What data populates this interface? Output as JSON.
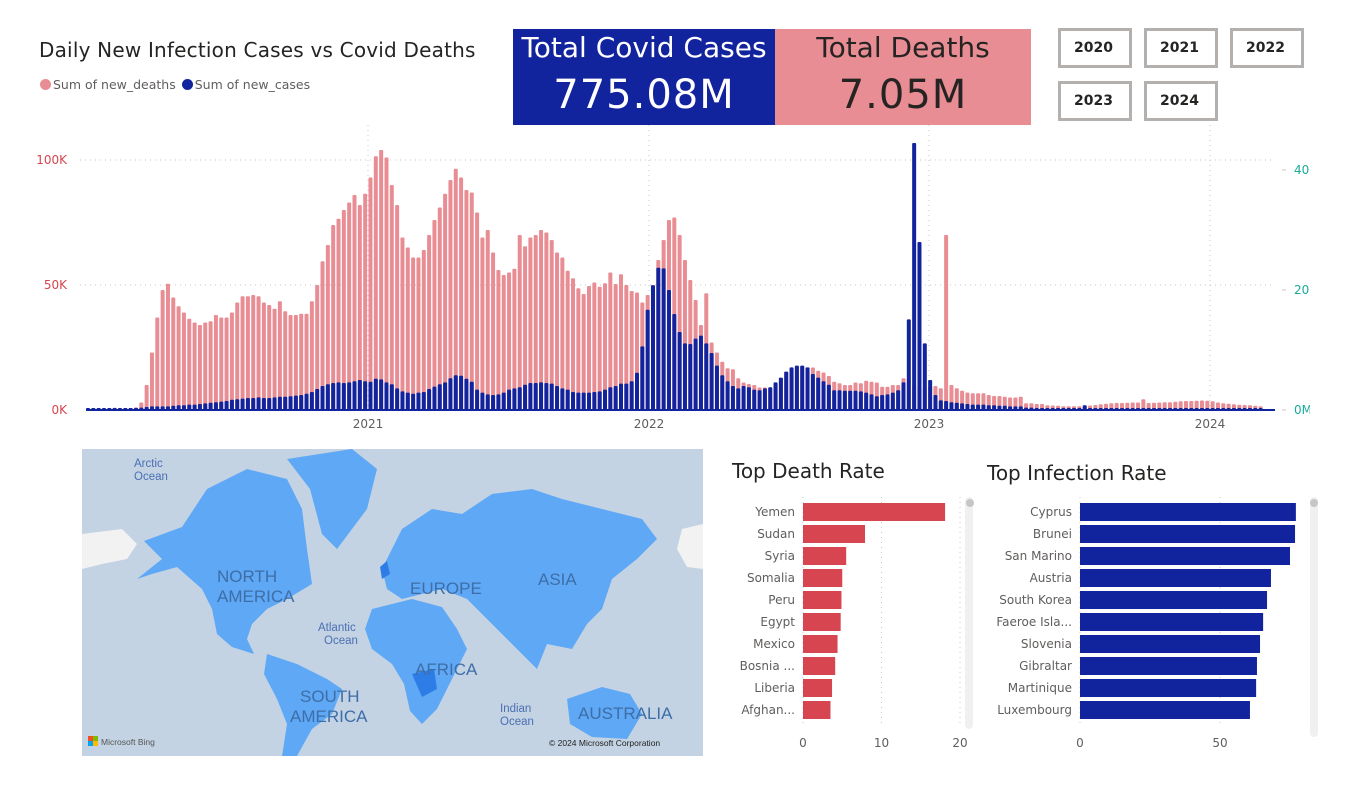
{
  "header": {
    "chart_title": "Daily New Infection Cases vs Covid Deaths",
    "legend": [
      {
        "label": "Sum of new_deaths",
        "color": "#e88d93"
      },
      {
        "label": "Sum of new_cases",
        "color": "#12239e"
      }
    ]
  },
  "kpis": {
    "cases": {
      "label": "Total Covid Cases",
      "value": "775.08M",
      "bg": "#12239e"
    },
    "deaths": {
      "label": "Total Deaths",
      "value": "7.05M",
      "bg": "#e88d93"
    }
  },
  "year_slicer": {
    "options": [
      "2020",
      "2021",
      "2022",
      "2023",
      "2024"
    ]
  },
  "map": {
    "continent_labels": [
      "NORTH AMERICA",
      "SOUTH AMERICA",
      "EUROPE",
      "ASIA",
      "AFRICA",
      "AUSTRALIA"
    ],
    "ocean_labels": [
      "Arctic Ocean",
      "Atlantic Ocean",
      "Indian Ocean"
    ],
    "provider": "Microsoft Bing",
    "copyright": "© 2024 Microsoft Corporation"
  },
  "chart_data": [
    {
      "type": "bar",
      "id": "combo",
      "title": "Daily New Infection Cases vs Covid Deaths",
      "xlabel": "",
      "x_ticks": [
        "2021",
        "2022",
        "2023",
        "2024"
      ],
      "x_range": [
        "2020-01",
        "2024-03"
      ],
      "granularity": "weekly",
      "y_left": {
        "label": "Sum of new_deaths",
        "ticks": [
          "0K",
          "50K",
          "100K"
        ],
        "range": [
          0,
          105000
        ],
        "color": "#d64550",
        "unit": "thousands"
      },
      "y_right": {
        "label": "Sum of new_cases",
        "ticks": [
          "0M",
          "20M",
          "40M"
        ],
        "range": [
          0,
          45000000
        ],
        "color": "#1aab9b",
        "unit": "millions"
      },
      "grid": true,
      "legend": "top-left",
      "series": [
        {
          "name": "Sum of new_deaths",
          "axis": "left",
          "color": "#e88d93",
          "unit": "K",
          "values": [
            0.1,
            0.2,
            0.3,
            0.4,
            0.6,
            0.9,
            0.8,
            0.7,
            0.8,
            1.0,
            3,
            10,
            23,
            37,
            48,
            50.5,
            45,
            41.5,
            39,
            36.5,
            35,
            34,
            35,
            35.5,
            38,
            37,
            37,
            39,
            43,
            45.5,
            45.5,
            46,
            45.5,
            43,
            42,
            40.5,
            43.5,
            39.5,
            38,
            38,
            38.5,
            38.5,
            43.5,
            50,
            59.5,
            66,
            74,
            76.5,
            80,
            83,
            86,
            82,
            86.5,
            93,
            101.5,
            104,
            101,
            90,
            82,
            69,
            65,
            61,
            61,
            64,
            70,
            76,
            81,
            86.5,
            92,
            96.5,
            93,
            88,
            87,
            79,
            69,
            72,
            63,
            56,
            54,
            55,
            56.5,
            70,
            65.5,
            69,
            70,
            72,
            71,
            68,
            63,
            61,
            55.7,
            52.7,
            48.7,
            46.4,
            49.6,
            51,
            49.3,
            50.7,
            55,
            50.4,
            54.3,
            50,
            47.6,
            47,
            43,
            46,
            50,
            60,
            68,
            76,
            77,
            70,
            60,
            52,
            44,
            34,
            46.7,
            27,
            23,
            19.3,
            16.7,
            16.3,
            12.7,
            11,
            10.4,
            10,
            9,
            9,
            9,
            10.7,
            12.7,
            15.3,
            16.7,
            17.3,
            17.3,
            17,
            17,
            15.7,
            15,
            13.6,
            11.3,
            10.7,
            10,
            10,
            11,
            10.7,
            11.7,
            11.3,
            11,
            9.3,
            9.3,
            10,
            10,
            12.7,
            12.7,
            10,
            10,
            9,
            9.6,
            9.6,
            8.7,
            70,
            10,
            8.7,
            7.7,
            7,
            6.7,
            6.7,
            6.7,
            6,
            5.6,
            5.6,
            5.3,
            5,
            5,
            5.3,
            2.7,
            2.7,
            2.4,
            2.4,
            1.9,
            1.8,
            1.7,
            1.5,
            1.5,
            1.5,
            1.5,
            1.4,
            1.8,
            2,
            2.3,
            2.5,
            2.7,
            2.8,
            2.8,
            2.9,
            3,
            3,
            4.3,
            2.8,
            2.9,
            3,
            3.1,
            3.1,
            3.3,
            3.5,
            3.6,
            3.6,
            3.7,
            3.8,
            3.7,
            3.5,
            3,
            2.7,
            2.5,
            2.3,
            2.1,
            2,
            1.9,
            1.7,
            1.5
          ]
        },
        {
          "name": "Sum of new_cases",
          "axis": "right",
          "color": "#12239e",
          "unit": "M",
          "values": [
            0.05,
            0.05,
            0.1,
            0.1,
            0.15,
            0.2,
            0.25,
            0.3,
            0.3,
            0.35,
            0.4,
            0.5,
            0.6,
            0.6,
            0.6,
            0.6,
            0.7,
            0.8,
            0.8,
            0.9,
            0.9,
            1.0,
            1.1,
            1.2,
            1.3,
            1.4,
            1.5,
            1.7,
            1.8,
            1.9,
            2.0,
            2.0,
            2.1,
            2.0,
            2.0,
            2.1,
            2.2,
            2.2,
            2.3,
            2.4,
            2.5,
            2.7,
            3.0,
            3.5,
            4.0,
            4.3,
            4.5,
            4.6,
            4.5,
            4.6,
            4.8,
            5.0,
            4.8,
            4.7,
            5.2,
            5.1,
            4.6,
            4.3,
            3.6,
            3.1,
            2.9,
            2.7,
            2.9,
            3.0,
            3.5,
            3.9,
            4.3,
            4.6,
            5.3,
            5.8,
            5.7,
            5.2,
            4.7,
            3.4,
            2.9,
            2.6,
            2.5,
            2.6,
            2.9,
            3.4,
            3.6,
            3.8,
            4.2,
            4.5,
            4.5,
            4.6,
            4.5,
            4.4,
            4.0,
            3.6,
            3.4,
            3.0,
            2.9,
            2.9,
            2.9,
            3.0,
            3.1,
            3.4,
            3.8,
            4.0,
            4.4,
            4.4,
            4.8,
            6.2,
            10.6,
            16.7,
            20.8,
            23.7,
            23.6,
            20.0,
            16.0,
            13.0,
            11.1,
            11.0,
            11.9,
            12.4,
            11.1,
            9.5,
            7.4,
            5.8,
            4.8,
            4.0,
            3.6,
            4.0,
            3.8,
            3.4,
            3.3,
            3.6,
            3.8,
            4.6,
            5.4,
            6.4,
            7.1,
            7.4,
            7.4,
            7.1,
            6.0,
            5.4,
            4.8,
            4.2,
            3.3,
            3.3,
            3.2,
            3.2,
            3.2,
            3.1,
            2.9,
            2.6,
            2.3,
            2.5,
            2.6,
            2.9,
            3.3,
            4.6,
            15.1,
            44.5,
            28.0,
            11.1,
            5,
            2.5,
            1.6,
            1.5,
            1.3,
            1.2,
            1.1,
            1.0,
            0.9,
            0.9,
            0.9,
            0.8,
            0.8,
            0.7,
            0.7,
            0.6,
            0.6,
            0.6,
            0.4,
            0.4,
            0.3,
            0.3,
            0.3,
            0.3,
            0.2,
            0.2,
            0.2,
            0.2,
            0.2,
            0.8,
            0.3,
            0.3,
            0.3,
            0.3,
            0.3,
            0.3,
            0.3,
            0.3,
            0.3,
            0.3,
            0.3,
            0.3,
            0.3,
            0.3,
            0.3,
            0.3,
            0.3,
            0.3,
            0.3,
            0.3,
            0.3,
            0.3,
            0.2,
            0.2,
            0.2,
            0.2,
            0.2,
            0.2,
            0.2,
            0.2,
            0.2,
            0.2,
            0.2
          ]
        }
      ]
    },
    {
      "type": "bar",
      "id": "death-rate",
      "orientation": "horizontal",
      "title": "Top Death Rate",
      "categories": [
        "Yemen",
        "Sudan",
        "Syria",
        "Somalia",
        "Peru",
        "Egypt",
        "Mexico",
        "Bosnia ...",
        "Liberia",
        "Afghan..."
      ],
      "values": [
        18.1,
        7.9,
        5.5,
        5.0,
        4.9,
        4.8,
        4.4,
        4.1,
        3.7,
        3.5
      ],
      "x_ticks": [
        "0",
        "10",
        "20"
      ],
      "xlim": [
        0,
        20
      ],
      "color": "#d64550",
      "grid": true
    },
    {
      "type": "bar",
      "id": "infection-rate",
      "orientation": "horizontal",
      "title": "Top Infection Rate",
      "categories": [
        "Cyprus",
        "Brunei",
        "San Marino",
        "Austria",
        "South Korea",
        "Faeroe Isla...",
        "Slovenia",
        "Gibraltar",
        "Martinique",
        "Luxembourg"
      ],
      "values": [
        77.1,
        76.8,
        75.0,
        68.2,
        66.8,
        65.4,
        64.3,
        63.2,
        62.9,
        60.7
      ],
      "x_ticks": [
        "0",
        "50"
      ],
      "xlim": [
        0,
        50
      ],
      "color": "#12239e",
      "grid": true
    }
  ]
}
